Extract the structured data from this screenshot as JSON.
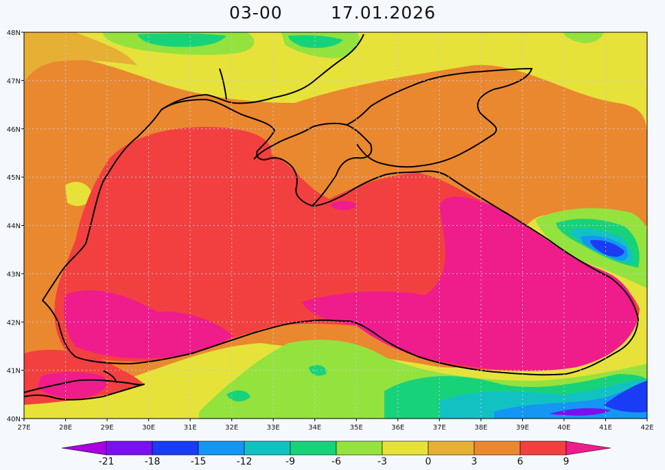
{
  "title": {
    "time": "03-00",
    "date": "17.01.2026"
  },
  "axes": {
    "lon": {
      "min": 27,
      "max": 42,
      "ticks": [
        "27E",
        "28E",
        "29E",
        "30E",
        "31E",
        "32E",
        "33E",
        "34E",
        "35E",
        "36E",
        "37E",
        "38E",
        "39E",
        "40E",
        "41E",
        "42E"
      ]
    },
    "lat": {
      "min": 40,
      "max": 48,
      "ticks": [
        "40N",
        "41N",
        "42N",
        "43N",
        "44N",
        "45N",
        "46N",
        "47N",
        "48N"
      ]
    },
    "grid": true
  },
  "colorbar": {
    "labels": [
      "-21",
      "-18",
      "-15",
      "-12",
      "-9",
      "-6",
      "-3",
      "0",
      "3",
      "6",
      "9"
    ],
    "colors": [
      "#a800e0",
      "#7a10f0",
      "#1a3cf5",
      "#1496f2",
      "#12c2c2",
      "#18d27a",
      "#94e23e",
      "#e6e23a",
      "#e6b034",
      "#ea8830",
      "#f24040",
      "#ef1c8c"
    ]
  },
  "map": {
    "region": "Black Sea",
    "projection": "lat-lon"
  }
}
